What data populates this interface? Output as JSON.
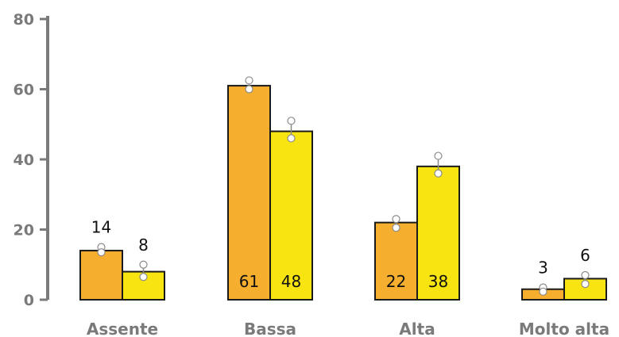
{
  "chart_data": {
    "type": "bar",
    "categories": [
      "Assente",
      "Bassa",
      "Alta",
      "Molto alta"
    ],
    "series": [
      {
        "values": [
          14,
          61,
          22,
          3
        ],
        "points": [
          [
            15,
            13.5
          ],
          [
            62.5,
            60
          ],
          [
            23,
            20.5
          ],
          [
            3.5,
            2.3
          ]
        ]
      },
      {
        "values": [
          8,
          48,
          38,
          6
        ],
        "points": [
          [
            10,
            6.5
          ],
          [
            51,
            46
          ],
          [
            41,
            36
          ],
          [
            7,
            4.5
          ]
        ]
      }
    ],
    "data_labels": [
      [
        "14",
        "61",
        "22",
        "3"
      ],
      [
        "8",
        "48",
        "38",
        "6"
      ]
    ],
    "label_inside": [
      false,
      true,
      true,
      false
    ],
    "y_ticks": [
      "0",
      "20",
      "40",
      "60",
      "80"
    ],
    "ylim": [
      0,
      80
    ],
    "title": "",
    "xlabel": "",
    "ylabel": "",
    "colors": [
      "#f5ae2e",
      "#f7e411"
    ],
    "bar_stroke": "#1a1a1a",
    "axis_color": "#7a7a7a",
    "point_fill": "#ffffff",
    "point_stroke": "#8a8a8a"
  }
}
